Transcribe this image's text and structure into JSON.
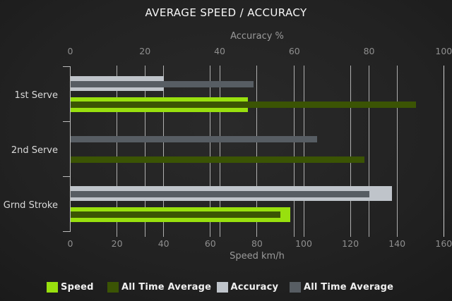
{
  "title": "AVERAGE SPEED / ACCURACY",
  "chart_data": {
    "type": "bar",
    "orientation": "horizontal",
    "title": "AVERAGE SPEED / ACCURACY",
    "categories": [
      "1st Serve",
      "2nd Serve",
      "Grnd Stroke"
    ],
    "axes": {
      "top": {
        "label": "Accuracy %",
        "min": 0,
        "max": 100,
        "ticks": [
          0,
          20,
          40,
          60,
          80,
          100
        ]
      },
      "bottom": {
        "label": "Speed km/h",
        "min": 0,
        "max": 160,
        "ticks": [
          0,
          20,
          40,
          60,
          80,
          100,
          120,
          140,
          160
        ]
      }
    },
    "series": [
      {
        "name": "Speed",
        "group": "speed",
        "role": "current",
        "axis": "bottom",
        "color": "#98e00e",
        "values": [
          76,
          null,
          94
        ]
      },
      {
        "name": "All Time Average",
        "group": "speed",
        "role": "average",
        "axis": "bottom",
        "color": "#3b5404",
        "values": [
          148,
          126,
          90
        ]
      },
      {
        "name": "Accuracy",
        "group": "accuracy",
        "role": "current",
        "axis": "top",
        "color": "#bfc4ca",
        "values": [
          25,
          null,
          86
        ]
      },
      {
        "name": "All Time Average",
        "group": "accuracy",
        "role": "average",
        "axis": "top",
        "color": "#575d63",
        "values": [
          49,
          66,
          80
        ]
      }
    ],
    "legend": [
      {
        "label": "Speed",
        "color": "#98e00e"
      },
      {
        "label": "All Time Average",
        "color": "#3b5404"
      },
      {
        "label": "Accuracy",
        "color": "#bfc4ca"
      },
      {
        "label": "All Time Average",
        "color": "#575d63"
      }
    ],
    "grid": true,
    "legend_position": "bottom"
  }
}
